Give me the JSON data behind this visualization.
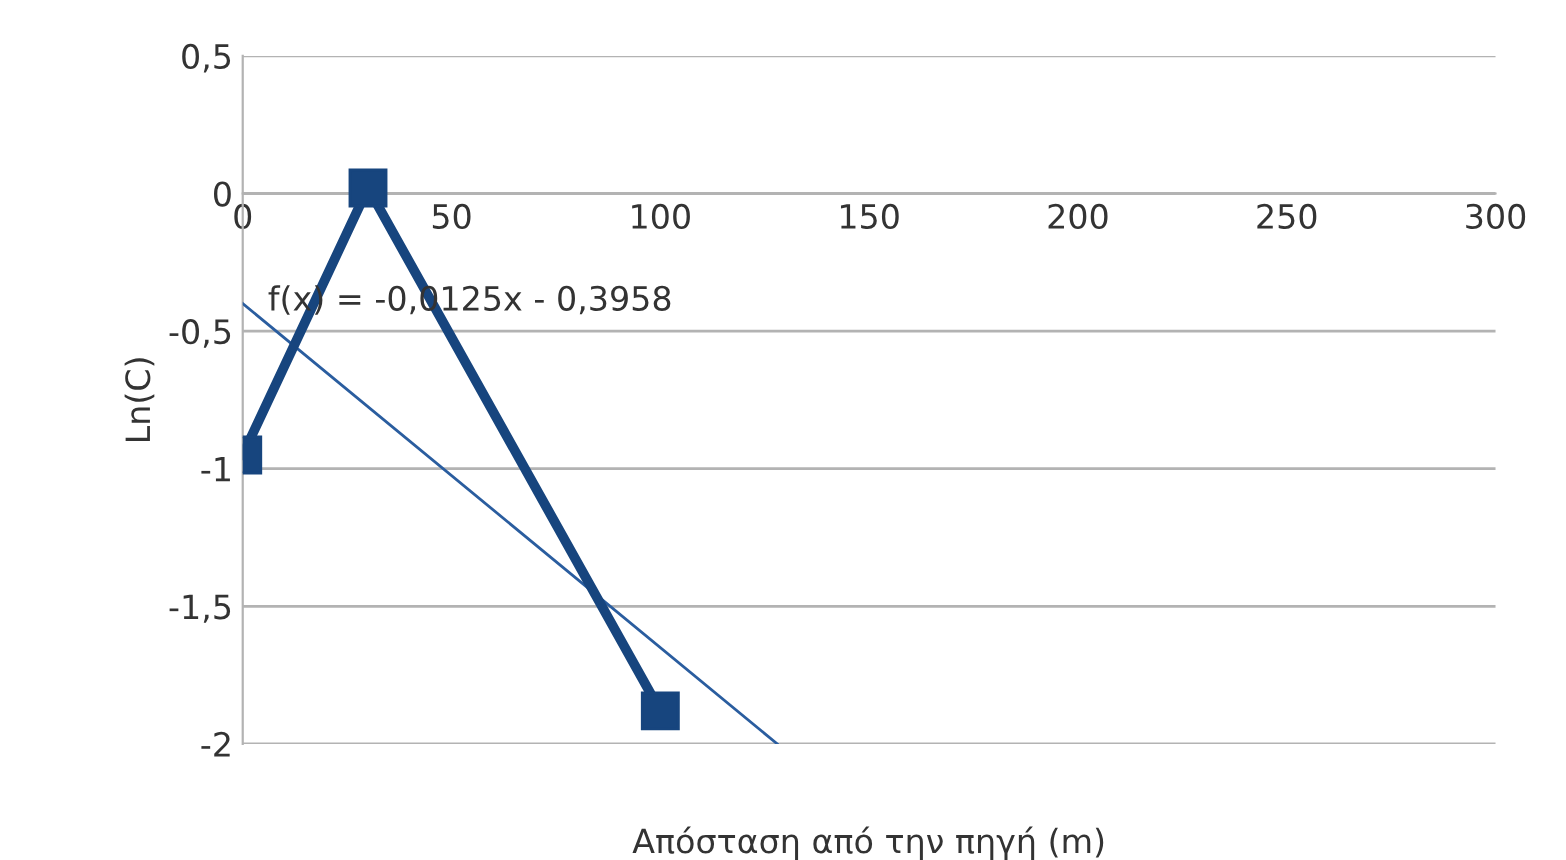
{
  "chart_data": {
    "type": "line",
    "xlabel": "Απόσταση από την πηγή (m)",
    "ylabel": "Ln(C)",
    "xlim": [
      0,
      300
    ],
    "ylim": [
      -2,
      0.5
    ],
    "xticks": [
      0,
      50,
      100,
      150,
      200,
      250,
      300
    ],
    "yticks": [
      {
        "value": -2,
        "label": "-2"
      },
      {
        "value": -1.5,
        "label": "-1,5"
      },
      {
        "value": -1,
        "label": "-1"
      },
      {
        "value": -0.5,
        "label": "-0,5"
      },
      {
        "value": 0,
        "label": "0"
      },
      {
        "value": 0.5,
        "label": "0,5"
      }
    ],
    "grid": "y",
    "legend": false,
    "series": [
      {
        "color": "#17457e",
        "x": [
          0,
          30,
          100
        ],
        "values": [
          -0.95,
          0.02,
          -1.88
        ],
        "marker": "square",
        "line_style": "solid"
      },
      {
        "color": "#2a5d9f",
        "x": [
          0,
          128
        ],
        "values": [
          -0.4,
          -2
        ],
        "marker": "none",
        "line_style": "solid"
      }
    ],
    "annotations": [
      "f(x) = -0,0125x - 0,3958"
    ]
  }
}
